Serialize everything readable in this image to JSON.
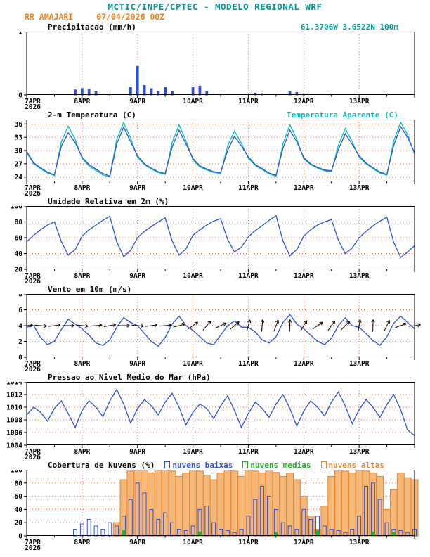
{
  "header": {
    "title": "MCTIC/INPE/CPTEC - MODELO REGIONAL WRF",
    "station": "RR AMAJARI",
    "run": "07/04/2026 00Z",
    "location": "61.3706W 3.6522N 100m"
  },
  "chart_data": {
    "type": "meteogram",
    "style": {
      "grid": "#d4775f",
      "axis": "#000000"
    },
    "x": {
      "unit": "hours since 07APR2026 00Z",
      "range": [
        0,
        168
      ],
      "step_hours": 3,
      "tick_hours": [
        0,
        24,
        48,
        72,
        96,
        120,
        144
      ],
      "tick_labels": [
        "7APR",
        "8APR",
        "9APR",
        "10APR",
        "11APR",
        "12APR",
        "13APR"
      ],
      "year_label": "2026"
    },
    "panels": [
      {
        "id": "precip",
        "title": "Precipitacao (mm/h)",
        "ylim": [
          0,
          1
        ],
        "yticks": [
          0,
          1
        ],
        "series": [
          {
            "id": "precipitation",
            "label": "Precipitacao",
            "type": "bar",
            "color": "#2b50dd",
            "fill": "#2b50dd",
            "width_frac": 0.28,
            "values": [
              0,
              0,
              0,
              0,
              0,
              0,
              0,
              0.08,
              0.1,
              0.09,
              0.05,
              0,
              0,
              0,
              0,
              0.12,
              0.45,
              0.15,
              0.1,
              0.06,
              0.12,
              0.05,
              0,
              0,
              0.12,
              0.14,
              0.06,
              0,
              0,
              0,
              0,
              0,
              0,
              0.03,
              0.02,
              0,
              0,
              0,
              0.05,
              0.04,
              0.02,
              0,
              0,
              0,
              0,
              0,
              0,
              0,
              0,
              0,
              0,
              0,
              0,
              0,
              0,
              0,
              0
            ]
          }
        ]
      },
      {
        "id": "temp2m",
        "title": "2-m Temperatura (C)",
        "ylim": [
          23,
          37
        ],
        "yticks": [
          24,
          27,
          30,
          33,
          36
        ],
        "series": [
          {
            "id": "temperature",
            "label": "2-m Temperatura (C)",
            "type": "line",
            "color": "#2b50dd",
            "z": 1,
            "values": [
              29.8,
              27.2,
              26.1,
              25.1,
              24.5,
              31,
              34,
              31.8,
              28.5,
              26.8,
              25.8,
              24.8,
              24.2,
              31.5,
              35.3,
              32,
              28.8,
              27,
              26,
              25.2,
              24.8,
              30.8,
              34.6,
              31.5,
              28.2,
              26.5,
              25.8,
              25.2,
              25,
              30,
              33.2,
              31,
              28.6,
              26.8,
              25.9,
              24.9,
              24.4,
              30.5,
              34.6,
              32,
              28.4,
              27,
              26.2,
              25.6,
              25.4,
              30.2,
              33.8,
              31.4,
              28.8,
              27.2,
              26.1,
              25.1,
              24.6,
              31.2,
              35.4,
              33,
              29.5
            ]
          },
          {
            "id": "apparent-temperature",
            "label": "Temperatura Aparente (C)",
            "type": "line",
            "color": "#00c4b4",
            "z": 0,
            "values": [
              29.5,
              27,
              25.9,
              24.9,
              24.3,
              32,
              35.5,
              32.5,
              28.2,
              26.5,
              25.5,
              24.5,
              24,
              32.5,
              36.3,
              32.8,
              28.5,
              26.8,
              25.8,
              25,
              24.6,
              31.8,
              35.8,
              32.2,
              27.9,
              26.3,
              25.6,
              25,
              24.8,
              31,
              34.4,
              31.6,
              28.3,
              26.6,
              25.7,
              24.7,
              24.2,
              31.5,
              35.8,
              32.6,
              28.1,
              26.8,
              26,
              25.4,
              25.2,
              31.2,
              35,
              32,
              28.5,
              27,
              25.9,
              24.9,
              24.4,
              32.2,
              36.4,
              33.6,
              29.2
            ]
          }
        ]
      },
      {
        "id": "rh2m",
        "title": "Umidade Relativa em 2m (%)",
        "ylim": [
          20,
          100
        ],
        "yticks": [
          20,
          40,
          60,
          80,
          100
        ],
        "series": [
          {
            "id": "relative-humidity",
            "label": "Umidade Relativa",
            "type": "line",
            "color": "#2b50dd",
            "values": [
              55,
              63,
              70,
              76,
              80,
              55,
              38,
              45,
              62,
              70,
              76,
              82,
              87,
              55,
              36,
              44,
              60,
              68,
              74,
              80,
              85,
              56,
              38,
              46,
              63,
              70,
              76,
              81,
              84,
              58,
              42,
              48,
              61,
              69,
              75,
              82,
              88,
              56,
              37,
              45,
              62,
              70,
              76,
              80,
              83,
              57,
              40,
              47,
              60,
              68,
              75,
              81,
              86,
              54,
              35,
              42,
              50
            ]
          }
        ]
      },
      {
        "id": "wind10m",
        "title": "Vento em 10m (m/s)",
        "ylim": [
          0,
          8
        ],
        "yticks": [
          0,
          2,
          4,
          6,
          8
        ],
        "series": [
          {
            "id": "wind-speed",
            "label": "Velocidade do Vento",
            "type": "line",
            "color": "#2b50dd",
            "values": [
              3.8,
              4,
              2.5,
              1.6,
              2,
              3.5,
              4.8,
              4.2,
              3.6,
              2.8,
              1.8,
              1.5,
              2.2,
              3.8,
              5,
              4.4,
              4,
              3,
              2,
              1.4,
              2.5,
              4.2,
              5.2,
              4,
              3.4,
              2.6,
              1.8,
              1.6,
              2.8,
              4,
              4.6,
              3.8,
              3.8,
              3.2,
              2.2,
              1.8,
              2.6,
              4.4,
              5.4,
              4.2,
              3.6,
              2.8,
              2,
              1.6,
              2.4,
              4,
              5,
              4,
              3.8,
              3,
              2.1,
              1.5,
              2.6,
              4.3,
              5.2,
              4.4,
              3.6
            ]
          },
          {
            "id": "wind-direction-barbs",
            "label": "Direcao do Vento",
            "type": "barbs",
            "color": "#000000",
            "y_center": 4,
            "step_hours": 6,
            "angles": [
              5,
              -5,
              8,
              0,
              -6,
              5,
              10,
              0,
              -5,
              8,
              5,
              15,
              35,
              50,
              25,
              40,
              75,
              85,
              70,
              88,
              60,
              35,
              55,
              45,
              80,
              88,
              65,
              20,
              8
            ]
          }
        ]
      },
      {
        "id": "slp",
        "title": "Pressao ao Nivel Medio do Mar (hPa)",
        "ylim": [
          1004,
          1014
        ],
        "yticks": [
          1004,
          1006,
          1008,
          1010,
          1012,
          1014
        ],
        "series": [
          {
            "id": "sea-level-pressure",
            "label": "Pressao",
            "type": "line",
            "color": "#2b50dd",
            "values": [
              1008.8,
              1010,
              1009.2,
              1007.8,
              1009.8,
              1011,
              1009,
              1006.8,
              1009.5,
              1011,
              1010,
              1008.5,
              1011,
              1012.8,
              1010.5,
              1007.5,
              1009.8,
              1011.2,
              1010.2,
              1008.8,
              1010.8,
              1012.2,
              1010,
              1007.2,
              1009.2,
              1010.5,
              1009.8,
              1008.2,
              1010.2,
              1011.8,
              1009.5,
              1006.8,
              1009,
              1010.8,
              1009.8,
              1008.4,
              1010.5,
              1012,
              1009.8,
              1007,
              1009.4,
              1011,
              1010,
              1008.6,
              1010.8,
              1012.4,
              1010.2,
              1007.4,
              1009.6,
              1011.2,
              1010,
              1008.4,
              1010.4,
              1012,
              1009.6,
              1006.4,
              1005.5
            ]
          }
        ]
      },
      {
        "id": "clouds",
        "title": "Cobertura de Nuvens (%)",
        "ylim": [
          0,
          100
        ],
        "yticks": [
          0,
          20,
          40,
          60,
          80,
          100
        ],
        "series": [
          {
            "id": "nuvens-baixas",
            "label": "nuvens baixas",
            "type": "bar",
            "color": "#2b50dd",
            "fill": "none",
            "width_frac": 0.5,
            "z": 1,
            "values": [
              0,
              0,
              0,
              0,
              0,
              0,
              0,
              10,
              18,
              25,
              15,
              10,
              20,
              15,
              30,
              55,
              80,
              65,
              40,
              25,
              35,
              20,
              10,
              8,
              15,
              40,
              45,
              20,
              10,
              8,
              5,
              10,
              30,
              55,
              75,
              60,
              40,
              20,
              15,
              10,
              40,
              25,
              30,
              15,
              10,
              8,
              5,
              10,
              30,
              75,
              80,
              55,
              20,
              10,
              8,
              5,
              10
            ]
          },
          {
            "id": "nuvens-medias",
            "label": "nuvens medias",
            "type": "bar",
            "color": "#22aa22",
            "fill": "#2ab02a",
            "width_frac": 0.4,
            "z": 2,
            "values": [
              0,
              0,
              0,
              0,
              0,
              0,
              0,
              0,
              0,
              0,
              0,
              0,
              0,
              0,
              8,
              0,
              0,
              0,
              0,
              0,
              0,
              0,
              0,
              0,
              0,
              6,
              0,
              0,
              0,
              0,
              0,
              0,
              0,
              0,
              0,
              0,
              5,
              0,
              0,
              0,
              0,
              0,
              8,
              0,
              0,
              0,
              0,
              0,
              0,
              0,
              6,
              0,
              0,
              5,
              0,
              0,
              0
            ]
          },
          {
            "id": "nuvens-altas",
            "label": "nuvens altas",
            "type": "bar",
            "color": "#e8832a",
            "fill": "#f5b878",
            "width_frac": 1.0,
            "z": 0,
            "values": [
              0,
              0,
              0,
              0,
              0,
              0,
              0,
              0,
              0,
              0,
              0,
              0,
              0,
              20,
              85,
              98,
              100,
              100,
              95,
              100,
              100,
              98,
              90,
              95,
              100,
              98,
              92,
              85,
              95,
              100,
              98,
              90,
              100,
              98,
              95,
              100,
              96,
              90,
              95,
              85,
              60,
              30,
              10,
              45,
              90,
              100,
              98,
              95,
              100,
              98,
              95,
              90,
              40,
              70,
              95,
              88,
              85
            ]
          }
        ]
      }
    ]
  }
}
